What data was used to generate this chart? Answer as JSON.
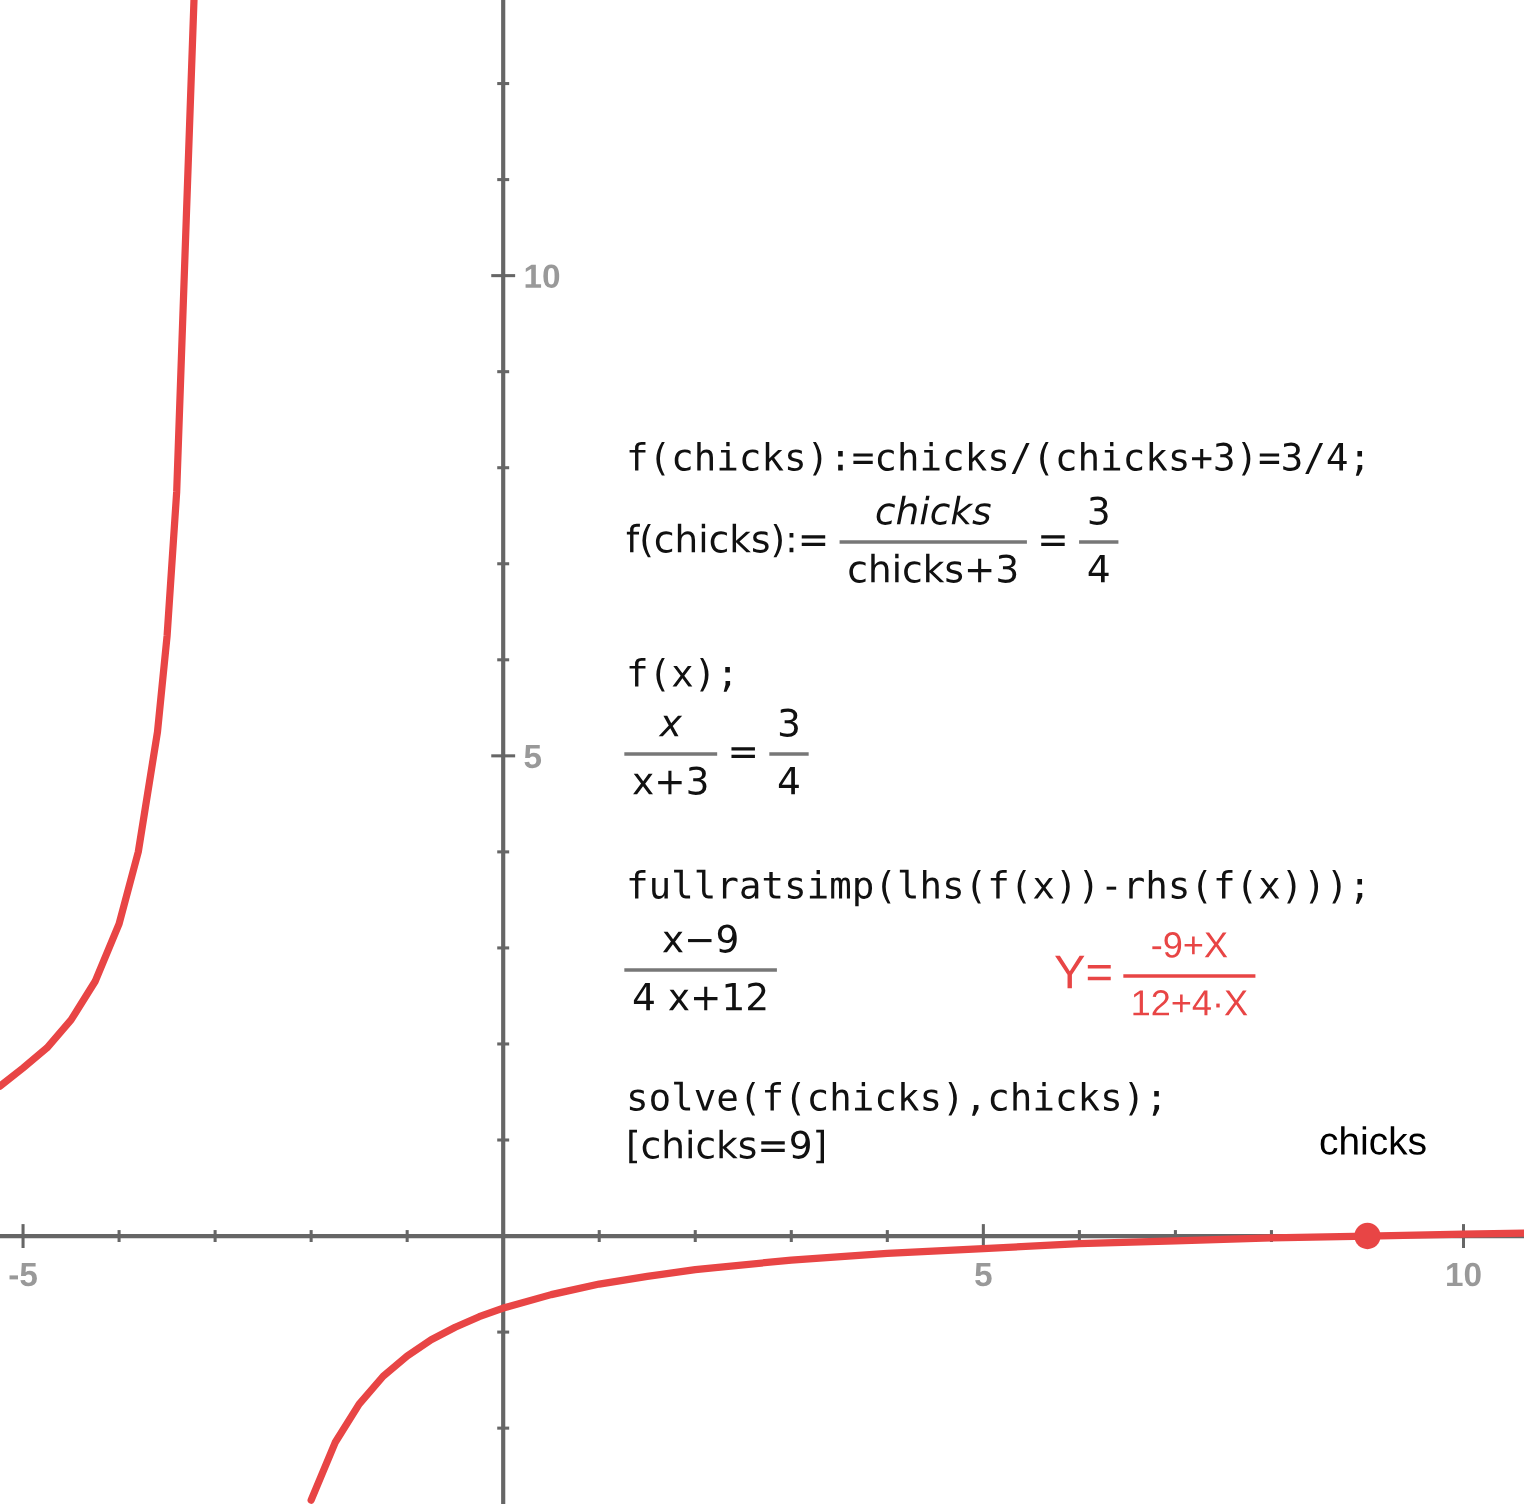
{
  "chart_data": {
    "type": "line",
    "xlim": [
      -5.24,
      10.63
    ],
    "ylim": [
      -2.79,
      12.87
    ],
    "xticks": [
      -5,
      {
        "value": -4,
        "label": null
      },
      {
        "value": -3,
        "label": null
      },
      {
        "value": -2,
        "label": null
      },
      {
        "value": -1,
        "label": null
      },
      {
        "value": 1,
        "label": null
      },
      {
        "value": 2,
        "label": null
      },
      {
        "value": 3,
        "label": null
      },
      {
        "value": 4,
        "label": null
      },
      5,
      {
        "value": 6,
        "label": null
      },
      {
        "value": 7,
        "label": null
      },
      {
        "value": 8,
        "label": null
      },
      {
        "value": 9,
        "label": null
      },
      10
    ],
    "yticks": [
      {
        "value": -2,
        "label": null
      },
      {
        "value": -1,
        "label": null
      },
      {
        "value": 1,
        "label": null
      },
      {
        "value": 2,
        "label": null
      },
      {
        "value": 3,
        "label": null
      },
      {
        "value": 4,
        "label": null
      },
      5,
      {
        "value": 6,
        "label": null
      },
      {
        "value": 7,
        "label": null
      },
      {
        "value": 8,
        "label": null
      },
      {
        "value": 9,
        "label": null
      },
      10,
      {
        "value": 11,
        "label": null
      },
      {
        "value": 12,
        "label": null
      }
    ],
    "series": [
      {
        "color": "#e84545",
        "x": [
          -5.24,
          -5.0,
          -4.75,
          -4.5,
          -4.25,
          -4.0,
          -3.8,
          -3.6,
          -3.5,
          -3.4,
          -3.3,
          -3.22
        ],
        "values": [
          1.56,
          1.75,
          1.96,
          2.25,
          2.65,
          3.25,
          4.0,
          5.25,
          6.25,
          7.75,
          10.6,
          12.87
        ]
      },
      {
        "color": "#e84545",
        "x": [
          -2.0,
          -1.75,
          -1.5,
          -1.25,
          -1.0,
          -0.75,
          -0.5,
          -0.25,
          0,
          0.5,
          1,
          1.5,
          2,
          3,
          4,
          5,
          6,
          7,
          8,
          9,
          10,
          10.63
        ],
        "values": [
          -2.75,
          -2.15,
          -1.75,
          -1.46,
          -1.25,
          -1.08,
          -0.95,
          -0.84,
          -0.75,
          -0.61,
          -0.5,
          -0.42,
          -0.35,
          -0.25,
          -0.18,
          -0.13,
          -0.08,
          -0.05,
          -0.02,
          0,
          0.02,
          0.03
        ]
      },
      {
        "type": "scatter",
        "color": "#e84545",
        "marker": "circle",
        "x": [
          9
        ],
        "values": [
          0
        ]
      }
    ],
    "annotations": [
      "f(chicks):=chicks/(chicks+3)=3/4;",
      "f(chicks):=",
      "chicks",
      "chicks+3",
      "=",
      "3",
      "4",
      "f(x);",
      "x",
      "x+3",
      "=",
      "3",
      "4",
      "fullratsimp(lhs(f(x))-rhs(f(x)));",
      "x−9",
      "4 x+12",
      "Y=",
      "-9+X",
      "12+4·X",
      "solve(f(chicks),chicks);",
      "[chicks=9]",
      {
        "text": "chicks",
        "x": 9,
        "y": 0
      }
    ]
  }
}
